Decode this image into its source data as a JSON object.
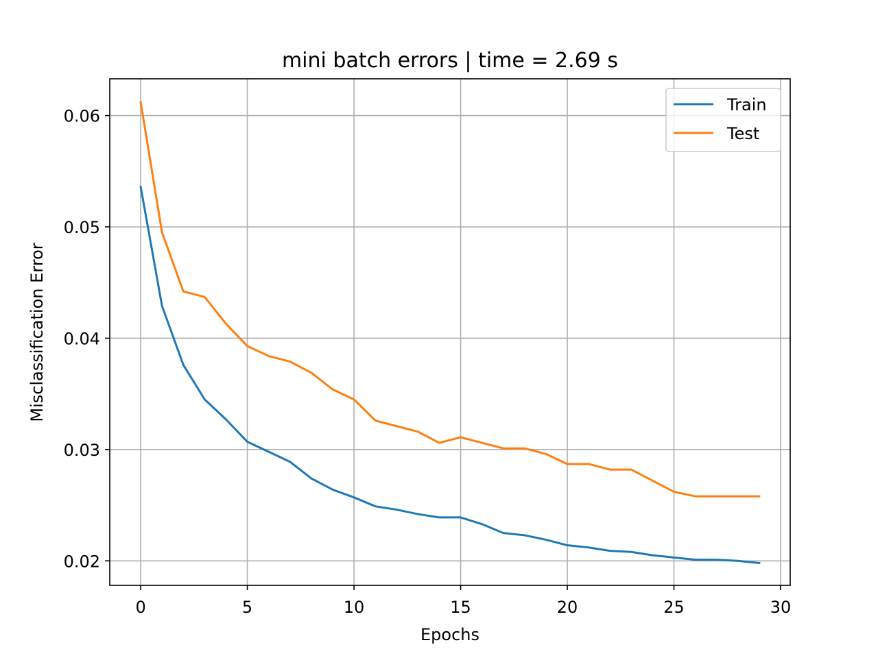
{
  "chart_data": {
    "type": "line",
    "title": "mini batch errors | time = 2.69 s",
    "xlabel": "Epochs",
    "ylabel": "Misclassification Error",
    "xlim": [
      -1.45,
      30.45
    ],
    "ylim": [
      0.0178,
      0.0633
    ],
    "xticks": [
      0,
      5,
      10,
      15,
      20,
      25,
      30
    ],
    "xtick_labels": [
      "0",
      "5",
      "10",
      "15",
      "20",
      "25",
      "30"
    ],
    "yticks": [
      0.02,
      0.03,
      0.04,
      0.05,
      0.06
    ],
    "ytick_labels": [
      "0.02",
      "0.03",
      "0.04",
      "0.05",
      "0.06"
    ],
    "grid": true,
    "legend_position": "top-right",
    "x": [
      0,
      1,
      2,
      3,
      4,
      5,
      6,
      7,
      8,
      9,
      10,
      11,
      12,
      13,
      14,
      15,
      16,
      17,
      18,
      19,
      20,
      21,
      22,
      23,
      24,
      25,
      26,
      27,
      28,
      29
    ],
    "series": [
      {
        "name": "Train",
        "color": "#1f77b4",
        "values": [
          0.0536,
          0.0429,
          0.0376,
          0.0345,
          0.0327,
          0.0307,
          0.0298,
          0.0289,
          0.0274,
          0.0264,
          0.0257,
          0.0249,
          0.0246,
          0.0242,
          0.0239,
          0.0239,
          0.0233,
          0.0225,
          0.0223,
          0.0219,
          0.0214,
          0.0212,
          0.0209,
          0.0208,
          0.0205,
          0.0203,
          0.0201,
          0.0201,
          0.02,
          0.0198
        ]
      },
      {
        "name": "Test",
        "color": "#ff7f0e",
        "values": [
          0.0612,
          0.0495,
          0.0442,
          0.0437,
          0.0413,
          0.0393,
          0.0384,
          0.0379,
          0.0369,
          0.0354,
          0.0345,
          0.0326,
          0.0321,
          0.0316,
          0.0306,
          0.0311,
          0.0306,
          0.0301,
          0.0301,
          0.0296,
          0.0287,
          0.0287,
          0.0282,
          0.0282,
          0.0272,
          0.0262,
          0.0258,
          0.0258,
          0.0258,
          0.0258
        ]
      }
    ]
  }
}
